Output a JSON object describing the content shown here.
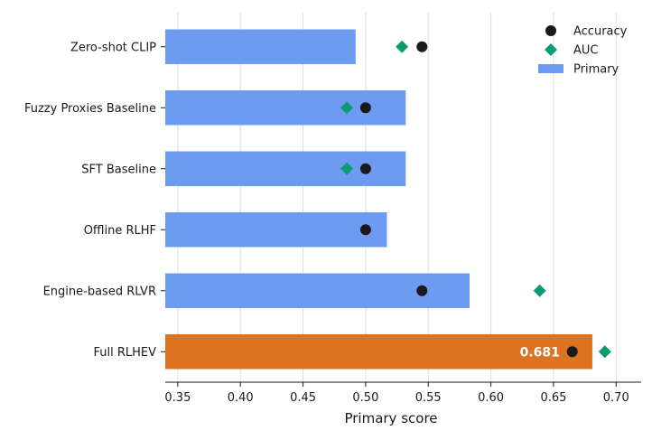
{
  "chart_data": {
    "type": "bar",
    "orientation": "horizontal",
    "categories": [
      "Zero-shot CLIP",
      "Fuzzy Proxies Baseline",
      "SFT Baseline",
      "Offline RLHF",
      "Engine-based RLVR",
      "Full RLHEV"
    ],
    "series": [
      {
        "name": "Primary",
        "values": [
          0.492,
          0.532,
          0.532,
          0.517,
          0.583,
          0.681
        ],
        "color": "#6d9bf1",
        "highlight_color": "#db7320"
      },
      {
        "name": "Accuracy",
        "values": [
          0.545,
          0.5,
          0.5,
          0.5,
          0.545,
          0.665
        ],
        "marker": "circle",
        "color": "#1a1a1a"
      },
      {
        "name": "AUC",
        "values": [
          0.529,
          0.485,
          0.485,
          null,
          0.639,
          0.691
        ],
        "marker": "diamond",
        "color": "#0b9b74"
      }
    ],
    "data_labels": [
      {
        "category": "Full RLHEV",
        "text": "0.681"
      }
    ],
    "xlabel": "Primary score",
    "ylabel": "",
    "xlim": [
      0.34,
      0.72
    ],
    "xticks": [
      "0.35",
      "0.40",
      "0.45",
      "0.50",
      "0.55",
      "0.60",
      "0.65",
      "0.70"
    ],
    "grid": "vertical",
    "legend": {
      "placement": "top-right",
      "entries": [
        "Accuracy",
        "AUC",
        "Primary"
      ]
    }
  }
}
